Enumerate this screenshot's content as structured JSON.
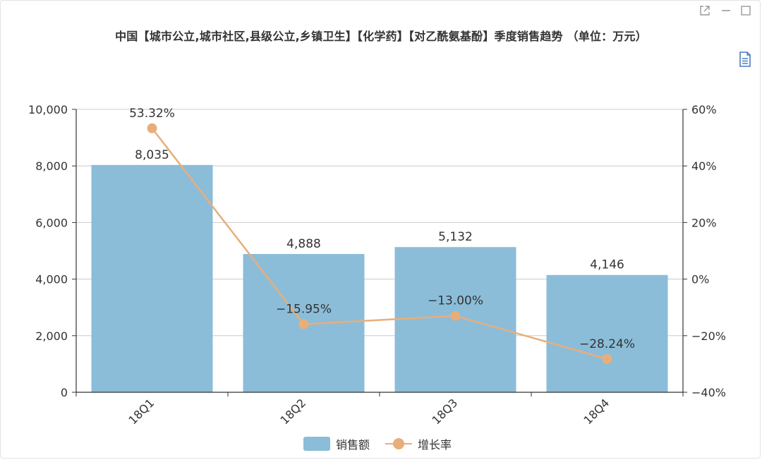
{
  "title": "中国【城市公立,城市社区,县级公立,乡镇卫生】【化学药】【对乙酰氨基酚】季度销售趋势 （单位：万元）",
  "toolbox": {
    "icons": [
      "expand-icon",
      "minimize-icon",
      "maximize-icon",
      "data-view-icon"
    ]
  },
  "colors": {
    "bar": "#8bbdd9",
    "line": "#e8ae7a",
    "axis": "#333333",
    "grid": "#cccccc",
    "text": "#333333"
  },
  "chart_data": {
    "type": "bar",
    "title": "中国【城市公立,城市社区,县级公立,乡镇卫生】【化学药】【对乙酰氨基酚】季度销售趋势 （单位：万元）",
    "categories": [
      "18Q1",
      "18Q2",
      "18Q3",
      "18Q4"
    ],
    "series": [
      {
        "name": "销售额",
        "type": "bar",
        "axis": "left",
        "values": [
          8035,
          4888,
          5132,
          4146
        ],
        "labels": [
          "8,035",
          "4,888",
          "5,132",
          "4,146"
        ]
      },
      {
        "name": "增长率",
        "type": "line",
        "axis": "right",
        "values": [
          53.32,
          -15.95,
          -13.0,
          -28.24
        ],
        "labels": [
          "53.32%",
          "−15.95%",
          "−13.00%",
          "−28.24%"
        ]
      }
    ],
    "y_left": {
      "min": 0,
      "max": 10000,
      "ticks": [
        0,
        2000,
        4000,
        6000,
        8000,
        10000
      ],
      "tick_labels": [
        "0",
        "2,000",
        "4,000",
        "6,000",
        "8,000",
        "10,000"
      ]
    },
    "y_right": {
      "min": -40,
      "max": 60,
      "ticks": [
        -40,
        -20,
        0,
        20,
        40,
        60
      ],
      "tick_labels": [
        "−40%",
        "−20%",
        "0%",
        "20%",
        "40%",
        "60%"
      ]
    },
    "grid": true,
    "legend_position": "bottom-center"
  }
}
